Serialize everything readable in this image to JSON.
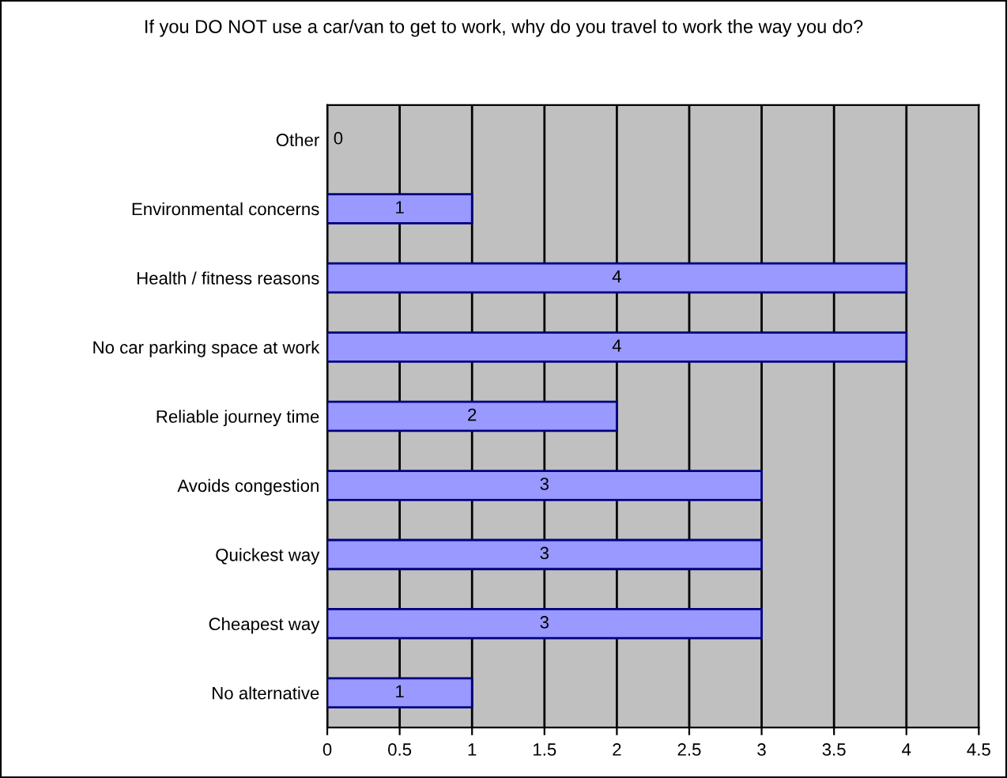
{
  "chart_data": {
    "type": "bar",
    "orientation": "horizontal",
    "title": "If you DO NOT use a car/van to get to work, why do you travel to work the way you do?",
    "categories": [
      "Other",
      "Environmental concerns",
      "Health / fitness reasons",
      "No car parking space at work",
      "Reliable journey time",
      "Avoids congestion",
      "Quickest way",
      "Cheapest way",
      "No alternative"
    ],
    "values": [
      0,
      1,
      4,
      4,
      2,
      3,
      3,
      3,
      1
    ],
    "color": "#9999ff",
    "xlim": [
      0,
      4.5
    ],
    "xticks": [
      0,
      0.5,
      1,
      1.5,
      2,
      2.5,
      3,
      3.5,
      4,
      4.5
    ],
    "grid": "x",
    "data_labels": true
  }
}
